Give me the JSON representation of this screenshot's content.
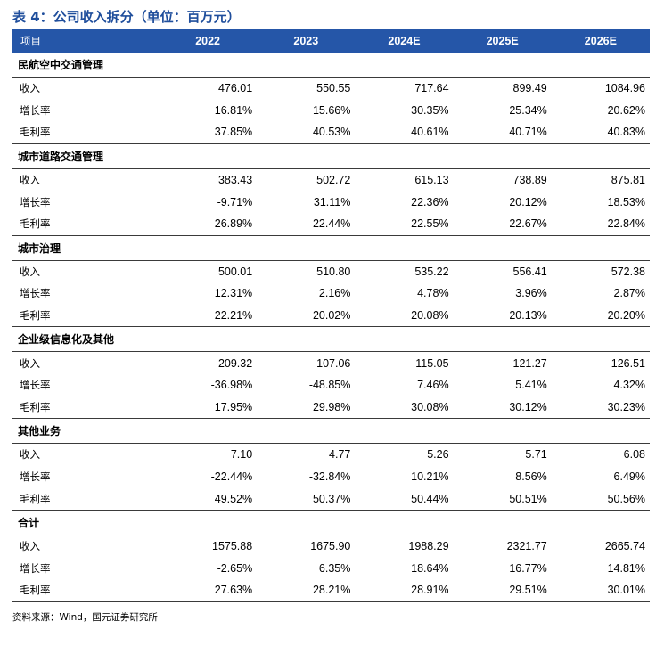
{
  "title": "表 4：公司收入拆分（单位：百万元）",
  "header": [
    "项目",
    "2022",
    "2023",
    "2024E",
    "2025E",
    "2026E"
  ],
  "sections": [
    {
      "name": "民航空中交通管理",
      "rows": [
        {
          "label": "收入",
          "values": [
            "476.01",
            "550.55",
            "717.64",
            "899.49",
            "1084.96"
          ]
        },
        {
          "label": "增长率",
          "values": [
            "16.81%",
            "15.66%",
            "30.35%",
            "25.34%",
            "20.62%"
          ]
        },
        {
          "label": "毛利率",
          "values": [
            "37.85%",
            "40.53%",
            "40.61%",
            "40.71%",
            "40.83%"
          ]
        }
      ]
    },
    {
      "name": "城市道路交通管理",
      "rows": [
        {
          "label": "收入",
          "values": [
            "383.43",
            "502.72",
            "615.13",
            "738.89",
            "875.81"
          ]
        },
        {
          "label": "增长率",
          "values": [
            "-9.71%",
            "31.11%",
            "22.36%",
            "20.12%",
            "18.53%"
          ]
        },
        {
          "label": "毛利率",
          "values": [
            "26.89%",
            "22.44%",
            "22.55%",
            "22.67%",
            "22.84%"
          ]
        }
      ]
    },
    {
      "name": "城市治理",
      "rows": [
        {
          "label": "收入",
          "values": [
            "500.01",
            "510.80",
            "535.22",
            "556.41",
            "572.38"
          ]
        },
        {
          "label": "增长率",
          "values": [
            "12.31%",
            "2.16%",
            "4.78%",
            "3.96%",
            "2.87%"
          ]
        },
        {
          "label": "毛利率",
          "values": [
            "22.21%",
            "20.02%",
            "20.08%",
            "20.13%",
            "20.20%"
          ]
        }
      ]
    },
    {
      "name": "企业级信息化及其他",
      "rows": [
        {
          "label": "收入",
          "values": [
            "209.32",
            "107.06",
            "115.05",
            "121.27",
            "126.51"
          ]
        },
        {
          "label": "增长率",
          "values": [
            "-36.98%",
            "-48.85%",
            "7.46%",
            "5.41%",
            "4.32%"
          ]
        },
        {
          "label": "毛利率",
          "values": [
            "17.95%",
            "29.98%",
            "30.08%",
            "30.12%",
            "30.23%"
          ]
        }
      ]
    },
    {
      "name": "其他业务",
      "rows": [
        {
          "label": "收入",
          "values": [
            "7.10",
            "4.77",
            "5.26",
            "5.71",
            "6.08"
          ]
        },
        {
          "label": "增长率",
          "values": [
            "-22.44%",
            "-32.84%",
            "10.21%",
            "8.56%",
            "6.49%"
          ]
        },
        {
          "label": "毛利率",
          "values": [
            "49.52%",
            "50.37%",
            "50.44%",
            "50.51%",
            "50.56%"
          ]
        }
      ]
    },
    {
      "name": "合计",
      "rows": [
        {
          "label": "收入",
          "values": [
            "1575.88",
            "1675.90",
            "1988.29",
            "2321.77",
            "2665.74"
          ]
        },
        {
          "label": "增长率",
          "values": [
            "-2.65%",
            "6.35%",
            "18.64%",
            "16.77%",
            "14.81%"
          ]
        },
        {
          "label": "毛利率",
          "values": [
            "27.63%",
            "28.21%",
            "28.91%",
            "29.51%",
            "30.01%"
          ]
        }
      ]
    }
  ],
  "source": "资料来源：Wind，国元证券研究所",
  "colors": {
    "title": "#1f4e9c",
    "header_bg": "#2556a8",
    "header_text": "#ffffff"
  }
}
